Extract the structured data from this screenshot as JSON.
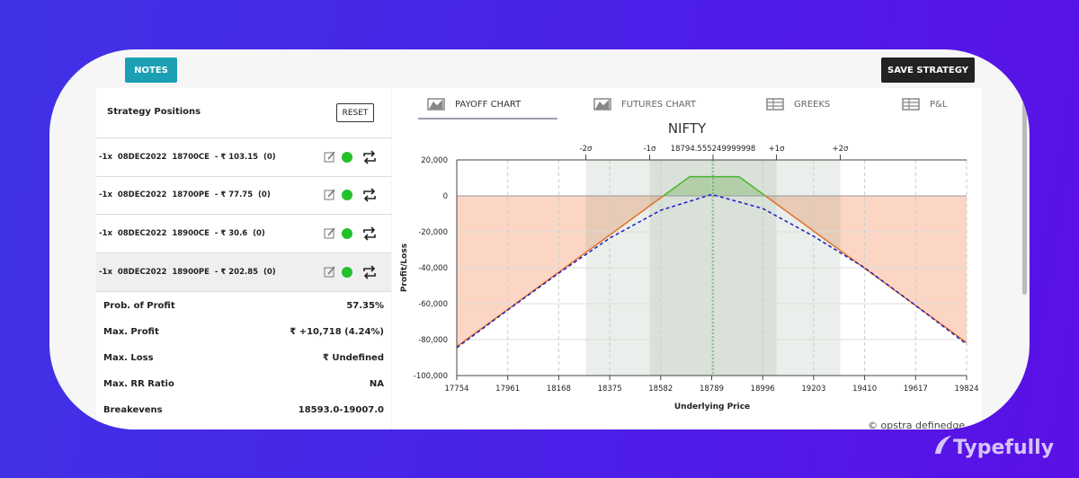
{
  "toolbar": {
    "notes": "NOTES",
    "save": "SAVE STRATEGY"
  },
  "positions": {
    "title": "Strategy Positions",
    "reset": "RESET",
    "rows": [
      "-1x  08DEC2022  18700CE  - ₹ 103.15  (0)",
      "-1x  08DEC2022  18700PE  - ₹ 77.75  (0)",
      "-1x  08DEC2022  18900CE  - ₹ 30.6  (0)",
      "-1x  08DEC2022  18900PE  - ₹ 202.85  (0)"
    ]
  },
  "stats": [
    {
      "label": "Prob. of Profit",
      "value": "57.35%"
    },
    {
      "label": "Max. Profit",
      "value": "₹ +10,718 (4.24%)"
    },
    {
      "label": "Max. Loss",
      "value": "₹ Undefined"
    },
    {
      "label": "Max. RR Ratio",
      "value": "NA"
    },
    {
      "label": "Breakevens",
      "value": "18593.0-19007.0"
    }
  ],
  "tabs": [
    "PAYOFF CHART",
    "FUTURES CHART",
    "GREEKS",
    "P&L"
  ],
  "active_tab": 0,
  "chart_data": {
    "type": "line",
    "title": "NIFTY",
    "x_label": "Underlying Price",
    "y_label": "Profit/Loss",
    "series": [
      {
        "color": "#e2712a",
        "fill": "#fbd6c4",
        "x": [
          17754,
          18593,
          18700,
          18900,
          19007,
          19824
        ],
        "values": [
          -83882,
          0,
          null,
          null,
          0,
          -81682
        ]
      },
      {
        "color": "#4cb32c",
        "fill": "#cfe9c2",
        "x": [
          17754,
          18593,
          18700,
          18900,
          19007,
          19824
        ],
        "values": [
          null,
          0,
          10718,
          10718,
          0,
          null
        ]
      },
      {
        "color": "#1d1dbf",
        "dashed": true,
        "x": [
          17754,
          17961,
          18168,
          18375,
          18582,
          18789,
          18996,
          19203,
          19410,
          19617,
          19824
        ],
        "values": [
          -84500,
          -63500,
          -43000,
          -23500,
          -8000,
          800,
          -7000,
          -22500,
          -40000,
          -61000,
          -82500
        ]
      }
    ],
    "xlim": [
      17754,
      19824
    ],
    "ylim": [
      -100000,
      20000
    ],
    "xticks": [
      17754,
      17961,
      18168,
      18375,
      18582,
      18789,
      18996,
      19203,
      19410,
      19617,
      19824
    ],
    "yticks": [
      {
        "value": 20000,
        "label": "20,000"
      },
      0,
      {
        "value": -20000,
        "label": "-20,000"
      },
      {
        "value": -40000,
        "label": "-40,000"
      },
      {
        "value": -60000,
        "label": "-60,000"
      },
      {
        "value": -80000,
        "label": "-80,000"
      },
      {
        "value": -100000,
        "label": "-100,000"
      }
    ],
    "sigma_ticks": [
      {
        "value": 18278,
        "label": "-2σ"
      },
      {
        "value": 18537,
        "label": "-1σ"
      },
      18794.555249999998,
      {
        "value": 19052,
        "label": "+1σ"
      },
      {
        "value": 19311,
        "label": "+2σ"
      }
    ],
    "center_color": "#3aa83a",
    "grid": true
  },
  "watermark": "© opstra definedge",
  "brand": "Typefully"
}
